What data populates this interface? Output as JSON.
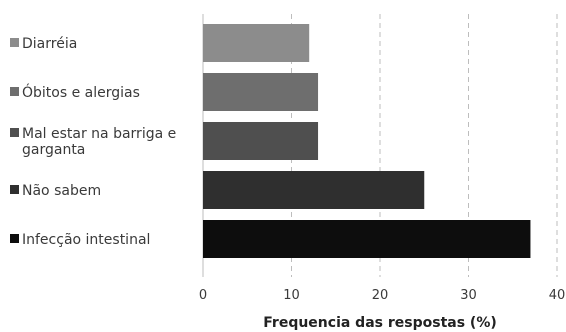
{
  "chart_data": {
    "type": "bar",
    "orientation": "horizontal",
    "categories": [
      "Diarréia",
      "Óbitos e alergias",
      "Mal estar na barriga e garganta",
      "Não sabem",
      "Infecção intestinal"
    ],
    "category_lines": [
      [
        "Diarréia"
      ],
      [
        "Óbitos e alergias"
      ],
      [
        "Mal estar na barriga e",
        "garganta"
      ],
      [
        "Não sabem"
      ],
      [
        "Infecção intestinal"
      ]
    ],
    "values": [
      12,
      13,
      13,
      25,
      37
    ],
    "colors": [
      "#8c8c8c",
      "#6e6e6e",
      "#4f4f4f",
      "#2f2f2f",
      "#0d0d0d"
    ],
    "xlabel": "Frequencia das respostas (%)",
    "xlim": [
      0,
      40
    ],
    "xticks": [
      "0",
      "10",
      "20",
      "30",
      "40"
    ],
    "grid": "vertical dashed",
    "legend": "left"
  }
}
